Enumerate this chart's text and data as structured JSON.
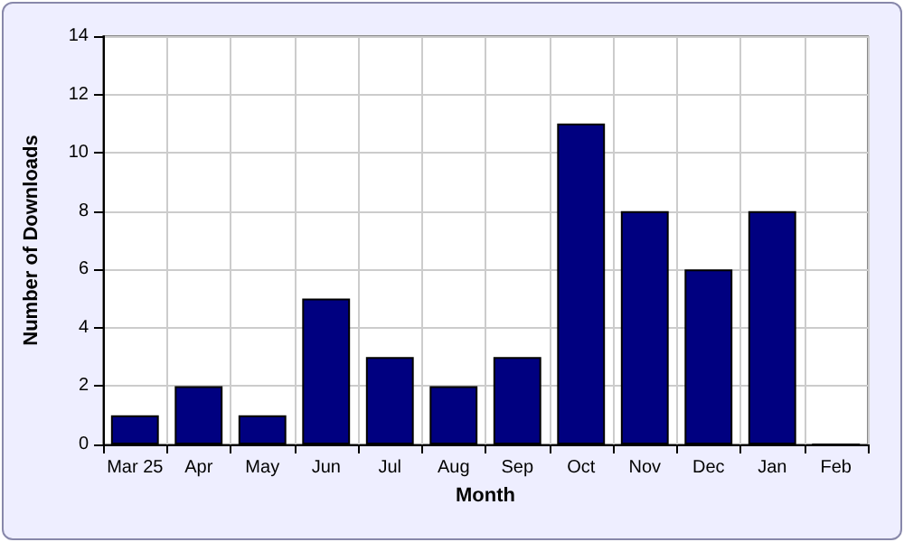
{
  "chart_data": {
    "type": "bar",
    "xlabel": "Month",
    "ylabel": "Number of Downloads",
    "categories": [
      "Mar 25",
      "Apr",
      "May",
      "Jun",
      "Jul",
      "Aug",
      "Sep",
      "Oct",
      "Nov",
      "Dec",
      "Jan",
      "Feb"
    ],
    "values": [
      1,
      2,
      1,
      5,
      3,
      2,
      3,
      11,
      8,
      6,
      8,
      0
    ],
    "color": "#000080",
    "ylim": [
      0,
      14
    ],
    "yticks": [
      0,
      2,
      4,
      6,
      8,
      10,
      12,
      14
    ],
    "grid": true
  }
}
